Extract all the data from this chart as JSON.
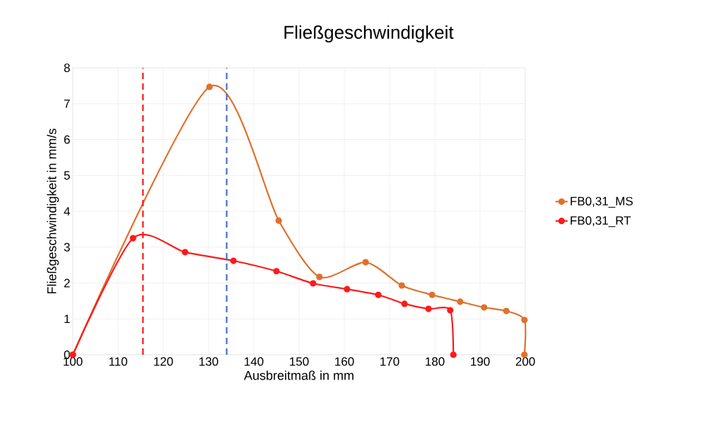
{
  "chart_data": {
    "type": "line",
    "title": "Fließgeschwindigkeit",
    "xlabel": "Ausbreitmaß in mm",
    "ylabel": "Fließgeschwindigkeit in mm/s",
    "xlim": [
      100,
      200
    ],
    "xticks": [
      100,
      110,
      120,
      130,
      140,
      150,
      160,
      170,
      180,
      190,
      200
    ],
    "ylim": [
      0,
      8
    ],
    "yticks": [
      0,
      1,
      2,
      3,
      4,
      5,
      6,
      7,
      8
    ],
    "grid": true,
    "legend": "right",
    "marker": "circle",
    "line_style": "solid",
    "series": [
      {
        "name": "FB0,31_MS",
        "color": "#e0702c",
        "x": [
          100,
          130.2,
          145.5,
          154.5,
          164.7,
          172.7,
          179.4,
          185.6,
          190.9,
          195.8,
          199.8,
          199.8
        ],
        "values": [
          0,
          7.47,
          3.74,
          2.17,
          2.58,
          1.93,
          1.67,
          1.48,
          1.32,
          1.22,
          0.97,
          0
        ]
      },
      {
        "name": "FB0,31_RT",
        "color": "#ff1a1a",
        "x": [
          100,
          113.3,
          124.8,
          135.5,
          145,
          153.1,
          160.6,
          167.5,
          173.3,
          178.6,
          183.4,
          184.1
        ],
        "values": [
          0,
          3.25,
          2.86,
          2.62,
          2.33,
          1.99,
          1.83,
          1.67,
          1.42,
          1.28,
          1.24,
          0
        ]
      }
    ],
    "ref_lines": [
      {
        "axis": "x",
        "value": 115.5,
        "color": "#ff1a1a",
        "line_style": "dashed"
      },
      {
        "axis": "x",
        "value": 134,
        "color": "#4a6fc0",
        "line_style": "dashed"
      }
    ]
  }
}
